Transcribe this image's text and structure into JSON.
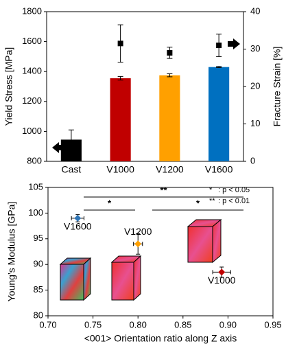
{
  "chart_data": [
    {
      "type": "bar",
      "categories": [
        "Cast",
        "V1000",
        "V1200",
        "V1600"
      ],
      "ylabel": "Yield Stress [MPa]",
      "y2label": "Fracture Strain [%]",
      "ylim": [
        800,
        1800
      ],
      "yticks": [
        800,
        1000,
        1200,
        1400,
        1600,
        1800
      ],
      "y2lim": [
        0,
        40
      ],
      "y2ticks": [
        0,
        10,
        20,
        30,
        40
      ],
      "series": [
        {
          "type": "bar",
          "values": [
            945,
            1355,
            1375,
            1430
          ],
          "errors": [
            65,
            12,
            10,
            4
          ],
          "colors": [
            "#000000",
            "#c00000",
            "#ffa000",
            "#0070c0"
          ]
        },
        {
          "type": "scatter",
          "axis": "y2",
          "values": [
            null,
            31.5,
            29,
            31
          ],
          "errors": [
            null,
            5,
            1.5,
            3
          ],
          "color": "#000000"
        }
      ]
    },
    {
      "type": "scatter",
      "xlabel": "<001> Orientation ratio along Z axis",
      "ylabel": "Young’s Modulus [GPa]",
      "xlim": [
        0.7,
        0.95
      ],
      "xticks": [
        {
          "value": 0.7,
          "label": "0.70"
        },
        0.75,
        {
          "value": 0.8,
          "label": "0.80"
        },
        0.85,
        {
          "value": 0.9,
          "label": "0.90"
        },
        0.95
      ],
      "ylim": [
        80,
        105
      ],
      "yticks": [
        80,
        85,
        90,
        95,
        100,
        105
      ],
      "series": [
        {
          "name": "V1600",
          "color": "#2e75b6",
          "x": [
            0.733
          ],
          "values": [
            99
          ],
          "xerr": [
            0.007
          ],
          "yerr": [
            0.7
          ]
        },
        {
          "name": "V1200",
          "color": "#ffa000",
          "x": [
            0.8
          ],
          "values": [
            94
          ],
          "xerr": [
            0.005
          ],
          "yerr": [
            2
          ]
        },
        {
          "name": "V1000",
          "color": "#c00000",
          "x": [
            0.893
          ],
          "values": [
            88.5
          ],
          "xerr": [
            0.01
          ],
          "yerr": [
            1
          ]
        }
      ],
      "annotations": [
        "**",
        "*",
        "*"
      ],
      "significance": [
        {
          "mark": "*",
          "text": ": p < 0.05"
        },
        {
          "mark": "**",
          "text": ": p < 0.01"
        }
      ]
    }
  ]
}
